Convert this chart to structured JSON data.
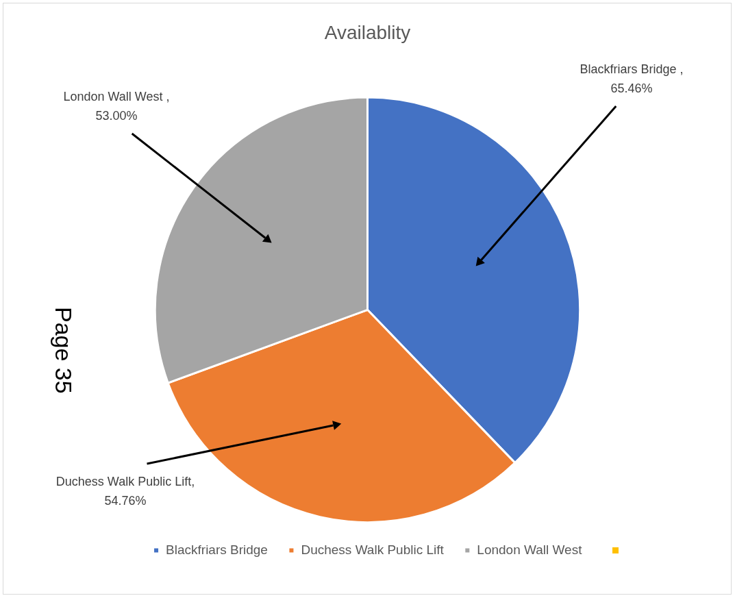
{
  "chart_data": {
    "type": "pie",
    "title": "Availablity",
    "categories": [
      "Blackfriars Bridge",
      "Duchess Walk Public Lift",
      "London Wall West"
    ],
    "values": [
      65.46,
      54.76,
      53.0
    ],
    "colors": [
      "#4472c4",
      "#ed7d31",
      "#a5a5a5"
    ],
    "value_labels": [
      "Blackfriars Bridge , 65.46%",
      "Duchess Walk Public Lift, 54.76%",
      "London Wall West , 53.00%"
    ],
    "legend": "bottom",
    "annotations": [
      "Page 35"
    ]
  }
}
